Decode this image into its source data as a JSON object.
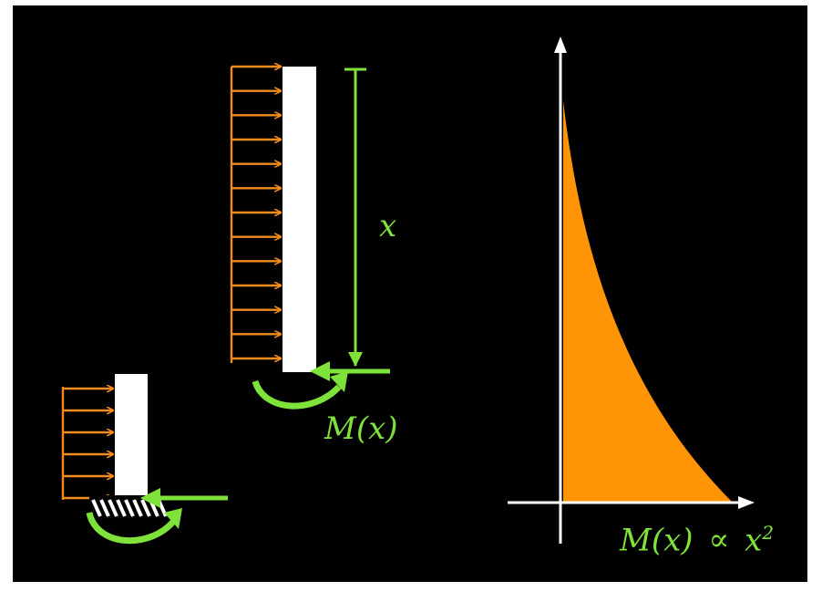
{
  "colors": {
    "background": "#000000",
    "beam": "#ffffff",
    "load_arrows": "#f28c1c",
    "annotation": "#7fe23a",
    "moment_area": "#ff9407",
    "axes": "#ffffff"
  },
  "labels": {
    "x": "x",
    "moment": "M(x)",
    "relation_lhs": "M(x)",
    "relation_symbol": "∝",
    "relation_var": "x",
    "relation_exp": "2"
  },
  "icons": [
    "uniform-load-arrows",
    "fixed-support-hatching",
    "moment-arc-arrow"
  ]
}
